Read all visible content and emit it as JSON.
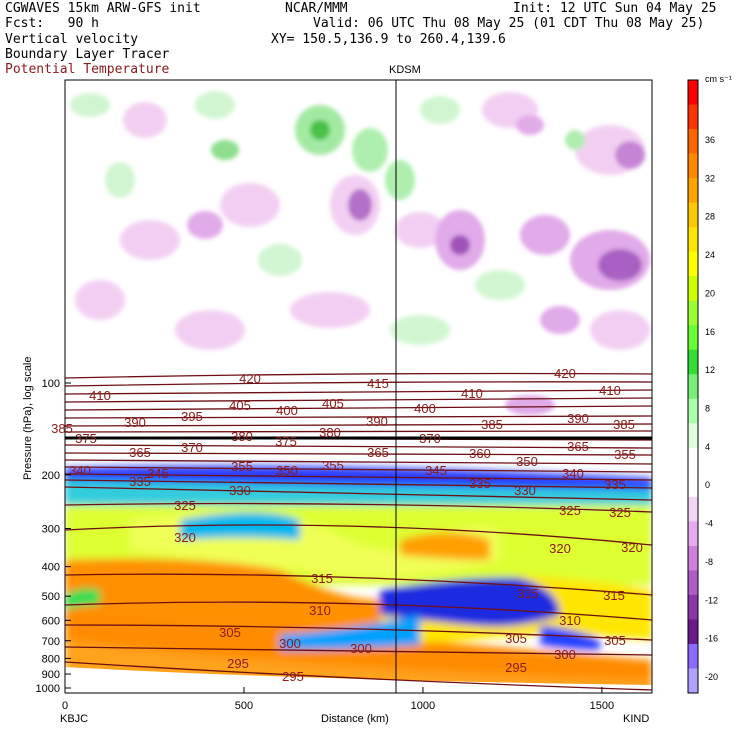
{
  "header": {
    "model": "CGWAVES 15km ARW-GFS init",
    "fcst": "Fcst:   90 h",
    "org": "NCAR/MMM",
    "init": "Init: 12 UTC Sun 04 May 25",
    "valid": "Valid: 06 UTC Thu 08 May 25 (01 CDT Thu 08 May 25)",
    "xy": "XY= 150.5,136.9 to 260.4,139.6",
    "field1": "Vertical velocity",
    "field2": "Boundary Layer Tracer",
    "field3": "Potential Temperature"
  },
  "colors": {
    "theta_line": "#6e0f14",
    "theta_label": "#8b1a1a"
  },
  "chart_data": {
    "type": "heatmap",
    "title": "KDSM",
    "xlabel": "Distance (km)",
    "ylabel": "Pressure (hPa), log scale",
    "x_ticks": [
      0,
      500,
      1000,
      1500
    ],
    "y_ticks": [
      100,
      200,
      300,
      400,
      500,
      600,
      700,
      800,
      900,
      1000
    ],
    "xlim": [
      0,
      1640
    ],
    "endpoints": {
      "left": "KBJC",
      "right": "KIND"
    },
    "marker_x_km": 930,
    "colorbar": {
      "unit": "cm s⁻¹",
      "labels": [
        36,
        32,
        28,
        24,
        20,
        16,
        12,
        8,
        4,
        0,
        -4,
        -8,
        -12,
        -16,
        -20
      ],
      "colors": [
        "#ff0000",
        "#ff3300",
        "#ff6600",
        "#ff8800",
        "#ffa500",
        "#ffc800",
        "#ffe600",
        "#ffff00",
        "#ccff00",
        "#99ff33",
        "#66ff33",
        "#33dd33",
        "#77ee77",
        "#aaffaa",
        "#ddffdd",
        "#ffffff",
        "#ffffff",
        "#f5d5f5",
        "#e8aaee",
        "#d07fdd",
        "#b05cc6",
        "#8a36a8",
        "#6a1a8c",
        "#8a6aff",
        "#b0a0ff"
      ]
    },
    "theta_labels": [
      {
        "v": "420",
        "x": 250,
        "y": 378
      },
      {
        "v": "415",
        "x": 378,
        "y": 383
      },
      {
        "v": "420",
        "x": 565,
        "y": 373
      },
      {
        "v": "410",
        "x": 100,
        "y": 395
      },
      {
        "v": "405",
        "x": 240,
        "y": 405
      },
      {
        "v": "400",
        "x": 287,
        "y": 410
      },
      {
        "v": "405",
        "x": 333,
        "y": 403
      },
      {
        "v": "410",
        "x": 472,
        "y": 393
      },
      {
        "v": "410",
        "x": 610,
        "y": 390
      },
      {
        "v": "400",
        "x": 425,
        "y": 408
      },
      {
        "v": "390",
        "x": 135,
        "y": 422
      },
      {
        "v": "395",
        "x": 192,
        "y": 416
      },
      {
        "v": "390",
        "x": 377,
        "y": 421
      },
      {
        "v": "385",
        "x": 492,
        "y": 424
      },
      {
        "v": "390",
        "x": 578,
        "y": 418
      },
      {
        "v": "385",
        "x": 624,
        "y": 424
      },
      {
        "v": "385",
        "x": 62,
        "y": 428
      },
      {
        "v": "380",
        "x": 242,
        "y": 436
      },
      {
        "v": "375",
        "x": 286,
        "y": 441
      },
      {
        "v": "380",
        "x": 330,
        "y": 432
      },
      {
        "v": "370",
        "x": 430,
        "y": 438
      },
      {
        "v": "365",
        "x": 578,
        "y": 446
      },
      {
        "v": "375",
        "x": 86,
        "y": 438
      },
      {
        "v": "365",
        "x": 140,
        "y": 452
      },
      {
        "v": "370",
        "x": 192,
        "y": 447
      },
      {
        "v": "365",
        "x": 378,
        "y": 452
      },
      {
        "v": "360",
        "x": 480,
        "y": 453
      },
      {
        "v": "350",
        "x": 527,
        "y": 461
      },
      {
        "v": "355",
        "x": 625,
        "y": 454
      },
      {
        "v": "355",
        "x": 242,
        "y": 466
      },
      {
        "v": "350",
        "x": 287,
        "y": 470
      },
      {
        "v": "355",
        "x": 333,
        "y": 465
      },
      {
        "v": "345",
        "x": 158,
        "y": 473
      },
      {
        "v": "345",
        "x": 436,
        "y": 470
      },
      {
        "v": "340",
        "x": 573,
        "y": 473
      },
      {
        "v": "340",
        "x": 80,
        "y": 470
      },
      {
        "v": "335",
        "x": 140,
        "y": 481
      },
      {
        "v": "335",
        "x": 480,
        "y": 483
      },
      {
        "v": "330",
        "x": 525,
        "y": 490
      },
      {
        "v": "335",
        "x": 615,
        "y": 484
      },
      {
        "v": "330",
        "x": 240,
        "y": 490
      },
      {
        "v": "325",
        "x": 185,
        "y": 505
      },
      {
        "v": "325",
        "x": 570,
        "y": 510
      },
      {
        "v": "325",
        "x": 620,
        "y": 512
      },
      {
        "v": "320",
        "x": 185,
        "y": 537
      },
      {
        "v": "320",
        "x": 560,
        "y": 548
      },
      {
        "v": "320",
        "x": 632,
        "y": 547
      },
      {
        "v": "315",
        "x": 322,
        "y": 578
      },
      {
        "v": "315",
        "x": 528,
        "y": 593
      },
      {
        "v": "315",
        "x": 614,
        "y": 595
      },
      {
        "v": "310",
        "x": 320,
        "y": 610
      },
      {
        "v": "310",
        "x": 570,
        "y": 620
      },
      {
        "v": "305",
        "x": 230,
        "y": 632
      },
      {
        "v": "305",
        "x": 516,
        "y": 638
      },
      {
        "v": "305",
        "x": 615,
        "y": 640
      },
      {
        "v": "300",
        "x": 290,
        "y": 643
      },
      {
        "v": "300",
        "x": 361,
        "y": 648
      },
      {
        "v": "300",
        "x": 565,
        "y": 654
      },
      {
        "v": "295",
        "x": 238,
        "y": 663
      },
      {
        "v": "295",
        "x": 293,
        "y": 676
      },
      {
        "v": "295",
        "x": 516,
        "y": 667
      }
    ]
  }
}
